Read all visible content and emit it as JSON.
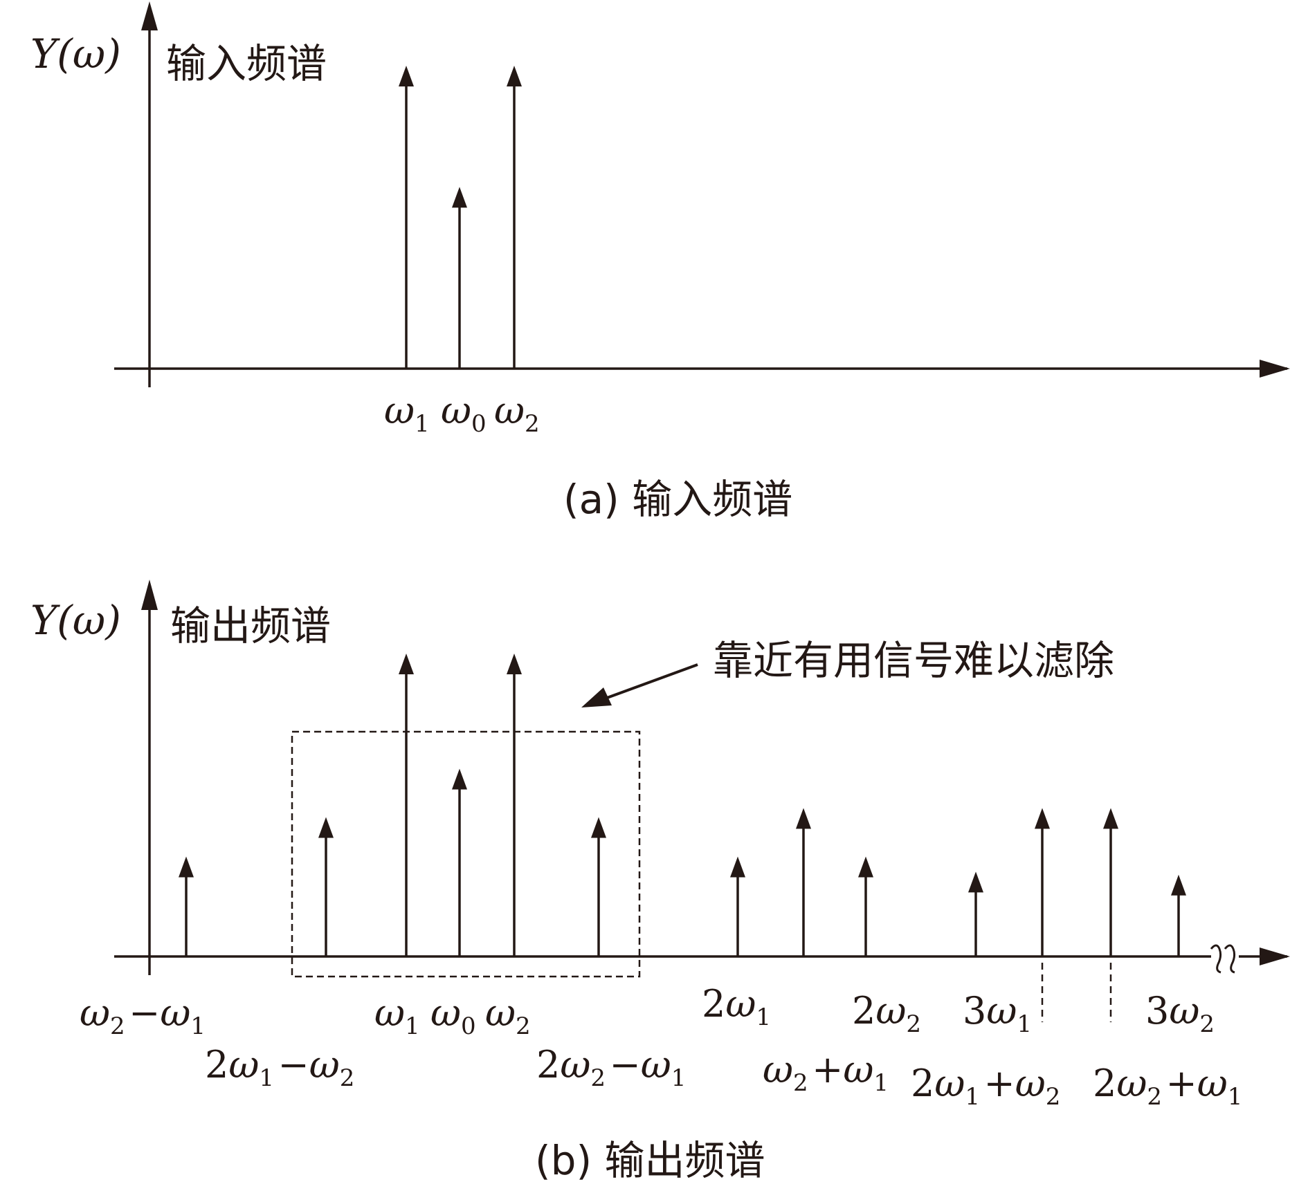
{
  "panel_a": {
    "y_axis_label": "Y(ω)",
    "axis_title": "输入频谱",
    "caption": "(a) 输入频谱",
    "components": [
      {
        "key": "w1",
        "level": 1.0
      },
      {
        "key": "w0",
        "level": 0.6
      },
      {
        "key": "w2",
        "level": 1.0
      }
    ],
    "tick_labels": [
      {
        "base": "ω",
        "sub": "1"
      },
      {
        "base": "ω",
        "sub": "0"
      },
      {
        "base": "ω",
        "sub": "2"
      }
    ]
  },
  "panel_b": {
    "y_axis_label": "Y(ω)",
    "axis_title": "输出频谱",
    "caption": "(b) 输出频谱",
    "annotation": "靠近有用信号难以滤除",
    "components": [
      {
        "key": "w2-w1",
        "level": 0.33
      },
      {
        "key": "2w1-w2",
        "level": 0.46
      },
      {
        "key": "w1",
        "level": 1.0
      },
      {
        "key": "w0",
        "level": 0.62
      },
      {
        "key": "w2",
        "level": 1.0
      },
      {
        "key": "2w2-w1",
        "level": 0.46
      },
      {
        "key": "2w1",
        "level": 0.33
      },
      {
        "key": "w2+w1",
        "level": 0.49
      },
      {
        "key": "2w2",
        "level": 0.33
      },
      {
        "key": "3w1",
        "level": 0.28
      },
      {
        "key": "2w1+w2",
        "level": 0.49
      },
      {
        "key": "2w2+w1",
        "level": 0.49
      },
      {
        "key": "3w2",
        "level": 0.27
      }
    ],
    "tick_labels": [
      {
        "parts": [
          [
            "ω",
            "2"
          ],
          [
            "−",
            ""
          ],
          [
            "ω",
            "1"
          ]
        ]
      },
      {
        "parts": [
          [
            "2ω",
            "1"
          ],
          [
            "−",
            ""
          ],
          [
            "ω",
            "2"
          ]
        ]
      },
      {
        "parts": [
          [
            "ω",
            "1"
          ]
        ]
      },
      {
        "parts": [
          [
            "ω",
            "0"
          ]
        ]
      },
      {
        "parts": [
          [
            "ω",
            "2"
          ]
        ]
      },
      {
        "parts": [
          [
            "2ω",
            "2"
          ],
          [
            "−",
            ""
          ],
          [
            "ω",
            "1"
          ]
        ]
      },
      {
        "parts": [
          [
            "2ω",
            "1"
          ]
        ]
      },
      {
        "parts": [
          [
            "ω",
            "2"
          ],
          [
            "+",
            ""
          ],
          [
            "ω",
            "1"
          ]
        ]
      },
      {
        "parts": [
          [
            "2ω",
            "2"
          ]
        ]
      },
      {
        "parts": [
          [
            "3ω",
            "1"
          ]
        ]
      },
      {
        "parts": [
          [
            "2ω",
            "1"
          ],
          [
            "+",
            ""
          ],
          [
            "ω",
            "2"
          ]
        ]
      },
      {
        "parts": [
          [
            "2ω",
            "2"
          ],
          [
            "+",
            ""
          ],
          [
            "ω",
            "1"
          ]
        ]
      },
      {
        "parts": [
          [
            "3ω",
            "2"
          ]
        ]
      }
    ]
  }
}
